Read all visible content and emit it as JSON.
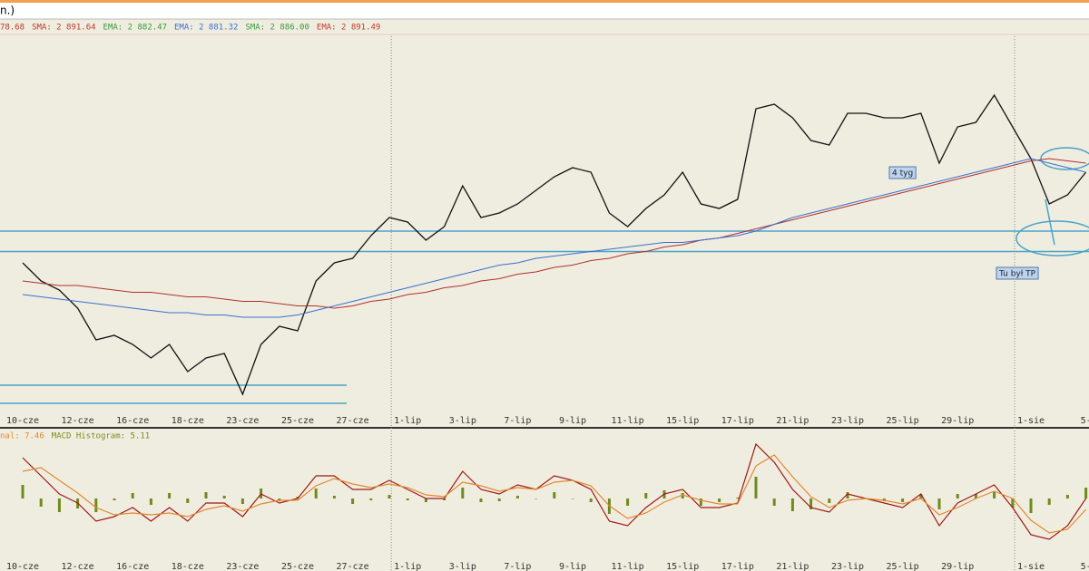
{
  "title": "n.)",
  "chart_data": [
    {
      "type": "line",
      "legend_items": [
        {
          "text": "78.68",
          "color": "#c0392b"
        },
        {
          "text": "SMA: 2 891.64",
          "color": "#c0392b"
        },
        {
          "text": "EMA: 2 882.47",
          "color": "#3a9a3a"
        },
        {
          "text": "EMA: 2 881.32",
          "color": "#3b6fd0"
        },
        {
          "text": "SMA: 2 886.00",
          "color": "#3a9a3a"
        },
        {
          "text": "EMA: 2 891.49",
          "color": "#c0392b"
        }
      ],
      "categories": [
        "10-cze",
        null,
        null,
        "12-cze",
        null,
        null,
        "16-cze",
        null,
        null,
        "18-cze",
        null,
        null,
        "23-cze",
        null,
        null,
        "25-cze",
        null,
        null,
        "27-cze",
        null,
        null,
        "1-lip",
        null,
        null,
        "3-lip",
        null,
        null,
        "7-lip",
        null,
        null,
        "9-lip",
        null,
        null,
        "11-lip",
        null,
        null,
        "15-lip",
        null,
        null,
        "17-lip",
        null,
        null,
        "21-lip",
        null,
        null,
        "23-lip",
        null,
        null,
        "25-lip",
        null,
        null,
        "29-lip",
        null,
        null,
        null,
        "1-sie",
        null,
        null,
        "5-"
      ],
      "series": [
        {
          "name": "Close",
          "color": "#111111",
          "values": [
            2860,
            2852,
            2848,
            2840,
            2826,
            2828,
            2824,
            2818,
            2824,
            2812,
            2818,
            2820,
            2802,
            2824,
            2832,
            2830,
            2852,
            2860,
            2862,
            2872,
            2880,
            2878,
            2870,
            2876,
            2894,
            2880,
            2882,
            2886,
            2892,
            2898,
            2902,
            2900,
            2882,
            2876,
            2884,
            2890,
            2900,
            2886,
            2884,
            2888,
            2928,
            2930,
            2924,
            2914,
            2912,
            2926,
            2926,
            2924,
            2924,
            2926,
            2904,
            2920,
            2922,
            2934,
            2920,
            2906,
            2886,
            2890,
            2900
          ]
        },
        {
          "name": "SMA",
          "color": "#b03030",
          "values": [
            2852,
            2851,
            2850,
            2850,
            2849,
            2848,
            2847,
            2847,
            2846,
            2845,
            2845,
            2844,
            2843,
            2843,
            2842,
            2841,
            2841,
            2840,
            2841,
            2843,
            2844,
            2846,
            2847,
            2849,
            2850,
            2852,
            2853,
            2855,
            2856,
            2858,
            2859,
            2861,
            2862,
            2864,
            2865,
            2867,
            2868,
            2870,
            2871,
            2873,
            2875,
            2877,
            2879,
            2881,
            2883,
            2885,
            2887,
            2889,
            2891,
            2893,
            2895,
            2897,
            2899,
            2901,
            2903,
            2905,
            2906,
            2905,
            2904
          ]
        },
        {
          "name": "EMA",
          "color": "#3b6fd0",
          "values": [
            2846,
            2845,
            2844,
            2843,
            2842,
            2841,
            2840,
            2839,
            2838,
            2838,
            2837,
            2837,
            2836,
            2836,
            2836,
            2837,
            2839,
            2841,
            2843,
            2845,
            2847,
            2849,
            2851,
            2853,
            2855,
            2857,
            2859,
            2860,
            2862,
            2863,
            2864,
            2865,
            2866,
            2867,
            2868,
            2869,
            2869,
            2870,
            2871,
            2872,
            2874,
            2877,
            2880,
            2882,
            2884,
            2886,
            2888,
            2890,
            2892,
            2894,
            2896,
            2898,
            2900,
            2902,
            2904,
            2906,
            2904,
            2902,
            2900
          ]
        }
      ],
      "levels": [
        2874,
        2865
      ],
      "short_levels": [
        2806,
        2798
      ],
      "level_color": "#4aa3c8",
      "annotations": [
        "4 tyg",
        "Tu był TP"
      ],
      "ylim": [
        2794,
        2960
      ]
    },
    {
      "type": "macd",
      "legend_items": [
        {
          "text": "nal: 7.46",
          "color": "#e08a30"
        },
        {
          "text": "MACD Histogram: 5.11",
          "color": "#7a8a1a"
        }
      ],
      "series": [
        {
          "name": "MACD",
          "color": "#a01818",
          "values": [
            22.5,
            12.5,
            2.5,
            -2.5,
            -12.5,
            -10,
            -5,
            -12.5,
            -5,
            -12.5,
            -2.5,
            -2.5,
            -10,
            2.5,
            -2.5,
            0,
            12.5,
            12.5,
            5,
            5,
            10,
            5,
            0,
            0,
            15,
            5,
            2.5,
            7.5,
            5,
            12.5,
            10,
            5,
            -12.5,
            -15,
            -5,
            2.5,
            5,
            -5,
            -5,
            -2.5,
            30,
            20,
            5,
            -5,
            -7.5,
            2.5,
            0,
            -2.5,
            -5,
            2.5,
            -15,
            -2.5,
            2.5,
            7.5,
            -5,
            -20,
            -22.5,
            -15,
            0
          ]
        },
        {
          "name": "Signal",
          "color": "#e08a30",
          "values": [
            15,
            17,
            10,
            3,
            -5,
            -9,
            -8,
            -9,
            -8,
            -10,
            -6,
            -4,
            -7,
            -3,
            -1,
            -1,
            7,
            11,
            8,
            6,
            8,
            6,
            2,
            1,
            9,
            7,
            4,
            6,
            5,
            9,
            10,
            7,
            -4,
            -11,
            -8,
            -2,
            2,
            -1,
            -3,
            -3,
            18,
            24,
            12,
            1,
            -5,
            -1,
            0,
            -1,
            -3,
            0,
            -9,
            -5,
            0,
            4,
            0,
            -12,
            -19,
            -17,
            -6
          ]
        },
        {
          "name": "Histogram",
          "color": "#6f8a1e",
          "values": [
            7.5,
            -4.5,
            -7.5,
            -5.5,
            -7.5,
            -1,
            3,
            -3.5,
            3,
            -2.5,
            3.5,
            1.5,
            -3,
            5.5,
            -1.5,
            1,
            5.5,
            1.5,
            -3,
            -1,
            2,
            -1,
            -2,
            -1,
            6,
            -2,
            -1.5,
            1.5,
            0,
            3.5,
            0,
            -2,
            -8.5,
            -4,
            3,
            4.5,
            3,
            -4,
            -2,
            0.5,
            12,
            -4,
            -7,
            -6,
            -2.5,
            3.5,
            0,
            -1.5,
            -2,
            2.5,
            -6,
            2.5,
            2.5,
            3.5,
            -5,
            -8,
            -3.5,
            2,
            6
          ]
        }
      ],
      "ylim": [
        -36,
        36
      ]
    }
  ]
}
